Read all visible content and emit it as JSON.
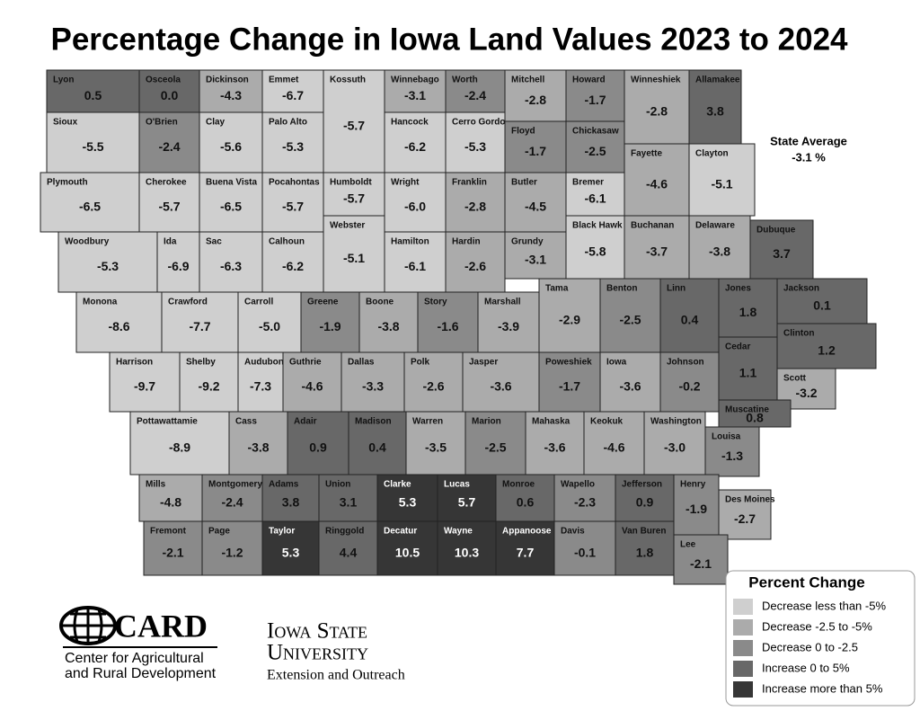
{
  "title": "Percentage Change in Iowa Land Values 2023 to 2024",
  "state_average": {
    "label": "State Average",
    "value": "-3.1 %"
  },
  "counties": [
    {
      "name": "Lyon",
      "value": "0.5"
    },
    {
      "name": "Osceola",
      "value": "0.0"
    },
    {
      "name": "Dickinson",
      "value": "-4.3"
    },
    {
      "name": "Emmet",
      "value": "-6.7"
    },
    {
      "name": "Kossuth",
      "value": "-5.7"
    },
    {
      "name": "Winnebago",
      "value": "-3.1"
    },
    {
      "name": "Worth",
      "value": "-2.4"
    },
    {
      "name": "Mitchell",
      "value": "-2.8"
    },
    {
      "name": "Howard",
      "value": "-1.7"
    },
    {
      "name": "Winneshiek",
      "value": "-2.8"
    },
    {
      "name": "Allamakee",
      "value": "3.8"
    },
    {
      "name": "Sioux",
      "value": "-5.5"
    },
    {
      "name": "O'Brien",
      "value": "-2.4"
    },
    {
      "name": "Clay",
      "value": "-5.6"
    },
    {
      "name": "Palo Alto",
      "value": "-5.3"
    },
    {
      "name": "Hancock",
      "value": "-6.2"
    },
    {
      "name": "Cerro Gordo",
      "value": "-5.3"
    },
    {
      "name": "Floyd",
      "value": "-1.7"
    },
    {
      "name": "Chickasaw",
      "value": "-2.5"
    },
    {
      "name": "Fayette",
      "value": "-4.6"
    },
    {
      "name": "Clayton",
      "value": "-5.1"
    },
    {
      "name": "Plymouth",
      "value": "-6.5"
    },
    {
      "name": "Cherokee",
      "value": "-5.7"
    },
    {
      "name": "Buena Vista",
      "value": "-6.5"
    },
    {
      "name": "Pocahontas",
      "value": "-5.7"
    },
    {
      "name": "Humboldt",
      "value": "-5.7"
    },
    {
      "name": "Wright",
      "value": "-6.0"
    },
    {
      "name": "Franklin",
      "value": "-2.8"
    },
    {
      "name": "Butler",
      "value": "-4.5"
    },
    {
      "name": "Bremer",
      "value": "-6.1"
    },
    {
      "name": "Buchanan",
      "value": "-3.7"
    },
    {
      "name": "Delaware",
      "value": "-3.8"
    },
    {
      "name": "Black Hawk",
      "value": "-5.8"
    },
    {
      "name": "Webster",
      "value": "-5.1"
    },
    {
      "name": "Woodbury",
      "value": "-5.3"
    },
    {
      "name": "Ida",
      "value": "-6.9"
    },
    {
      "name": "Sac",
      "value": "-6.3"
    },
    {
      "name": "Calhoun",
      "value": "-6.2"
    },
    {
      "name": "Hamilton",
      "value": "-6.1"
    },
    {
      "name": "Hardin",
      "value": "-2.6"
    },
    {
      "name": "Grundy",
      "value": "-3.1"
    },
    {
      "name": "Dubuque",
      "value": "3.7"
    },
    {
      "name": "Monona",
      "value": "-8.6"
    },
    {
      "name": "Crawford",
      "value": "-7.7"
    },
    {
      "name": "Carroll",
      "value": "-5.0"
    },
    {
      "name": "Greene",
      "value": "-1.9"
    },
    {
      "name": "Boone",
      "value": "-3.8"
    },
    {
      "name": "Story",
      "value": "-1.6"
    },
    {
      "name": "Marshall",
      "value": "-3.9"
    },
    {
      "name": "Tama",
      "value": "-2.9"
    },
    {
      "name": "Benton",
      "value": "-2.5"
    },
    {
      "name": "Linn",
      "value": "0.4"
    },
    {
      "name": "Jones",
      "value": "1.8"
    },
    {
      "name": "Jackson",
      "value": "0.1"
    },
    {
      "name": "Harrison",
      "value": "-9.7"
    },
    {
      "name": "Shelby",
      "value": "-9.2"
    },
    {
      "name": "Audubon",
      "value": "-7.3"
    },
    {
      "name": "Guthrie",
      "value": "-4.6"
    },
    {
      "name": "Dallas",
      "value": "-3.3"
    },
    {
      "name": "Polk",
      "value": "-2.6"
    },
    {
      "name": "Jasper",
      "value": "-3.6"
    },
    {
      "name": "Poweshiek",
      "value": "-1.7"
    },
    {
      "name": "Iowa",
      "value": "-3.6"
    },
    {
      "name": "Johnson",
      "value": "-0.2"
    },
    {
      "name": "Cedar",
      "value": "1.1"
    },
    {
      "name": "Clinton",
      "value": "1.2"
    },
    {
      "name": "Scott",
      "value": "-3.2"
    },
    {
      "name": "Muscatine",
      "value": "0.8"
    },
    {
      "name": "Pottawattamie",
      "value": "-8.9"
    },
    {
      "name": "Cass",
      "value": "-3.8"
    },
    {
      "name": "Adair",
      "value": "0.9"
    },
    {
      "name": "Madison",
      "value": "0.4"
    },
    {
      "name": "Warren",
      "value": "-3.5"
    },
    {
      "name": "Marion",
      "value": "-2.5"
    },
    {
      "name": "Mahaska",
      "value": "-3.6"
    },
    {
      "name": "Keokuk",
      "value": "-4.6"
    },
    {
      "name": "Washington",
      "value": "-3.0"
    },
    {
      "name": "Louisa",
      "value": "-1.3"
    },
    {
      "name": "Mills",
      "value": "-4.8"
    },
    {
      "name": "Montgomery",
      "value": "-2.4"
    },
    {
      "name": "Adams",
      "value": "3.8"
    },
    {
      "name": "Union",
      "value": "3.1"
    },
    {
      "name": "Clarke",
      "value": "5.3"
    },
    {
      "name": "Lucas",
      "value": "5.7"
    },
    {
      "name": "Monroe",
      "value": "0.6"
    },
    {
      "name": "Wapello",
      "value": "-2.3"
    },
    {
      "name": "Jefferson",
      "value": "0.9"
    },
    {
      "name": "Henry",
      "value": "-1.9"
    },
    {
      "name": "Des Moines",
      "value": "-2.7"
    },
    {
      "name": "Fremont",
      "value": "-2.1"
    },
    {
      "name": "Page",
      "value": "-1.2"
    },
    {
      "name": "Taylor",
      "value": "5.3"
    },
    {
      "name": "Ringgold",
      "value": "4.4"
    },
    {
      "name": "Decatur",
      "value": "10.5"
    },
    {
      "name": "Wayne",
      "value": "10.3"
    },
    {
      "name": "Appanoose",
      "value": "7.7"
    },
    {
      "name": "Davis",
      "value": "-0.1"
    },
    {
      "name": "Van Buren",
      "value": "1.8"
    },
    {
      "name": "Lee",
      "value": "-2.1"
    }
  ],
  "legend": {
    "title": "Percent Change",
    "items": [
      {
        "label": "Decrease less than -5%",
        "color": "#cfcfcf"
      },
      {
        "label": "Decrease -2.5 to -5%",
        "color": "#ababab"
      },
      {
        "label": "Decrease 0 to -2.5",
        "color": "#8a8a8a"
      },
      {
        "label": "Increase 0 to 5%",
        "color": "#686868"
      },
      {
        "label": "Increase more than 5%",
        "color": "#363636"
      }
    ]
  },
  "logos": {
    "card": {
      "name": "CARD",
      "line1": "Center for Agricultural",
      "line2": "and Rural Development"
    },
    "isu": {
      "line1": "Iowa State",
      "line2": "University",
      "line3": "Extension and Outreach"
    }
  }
}
